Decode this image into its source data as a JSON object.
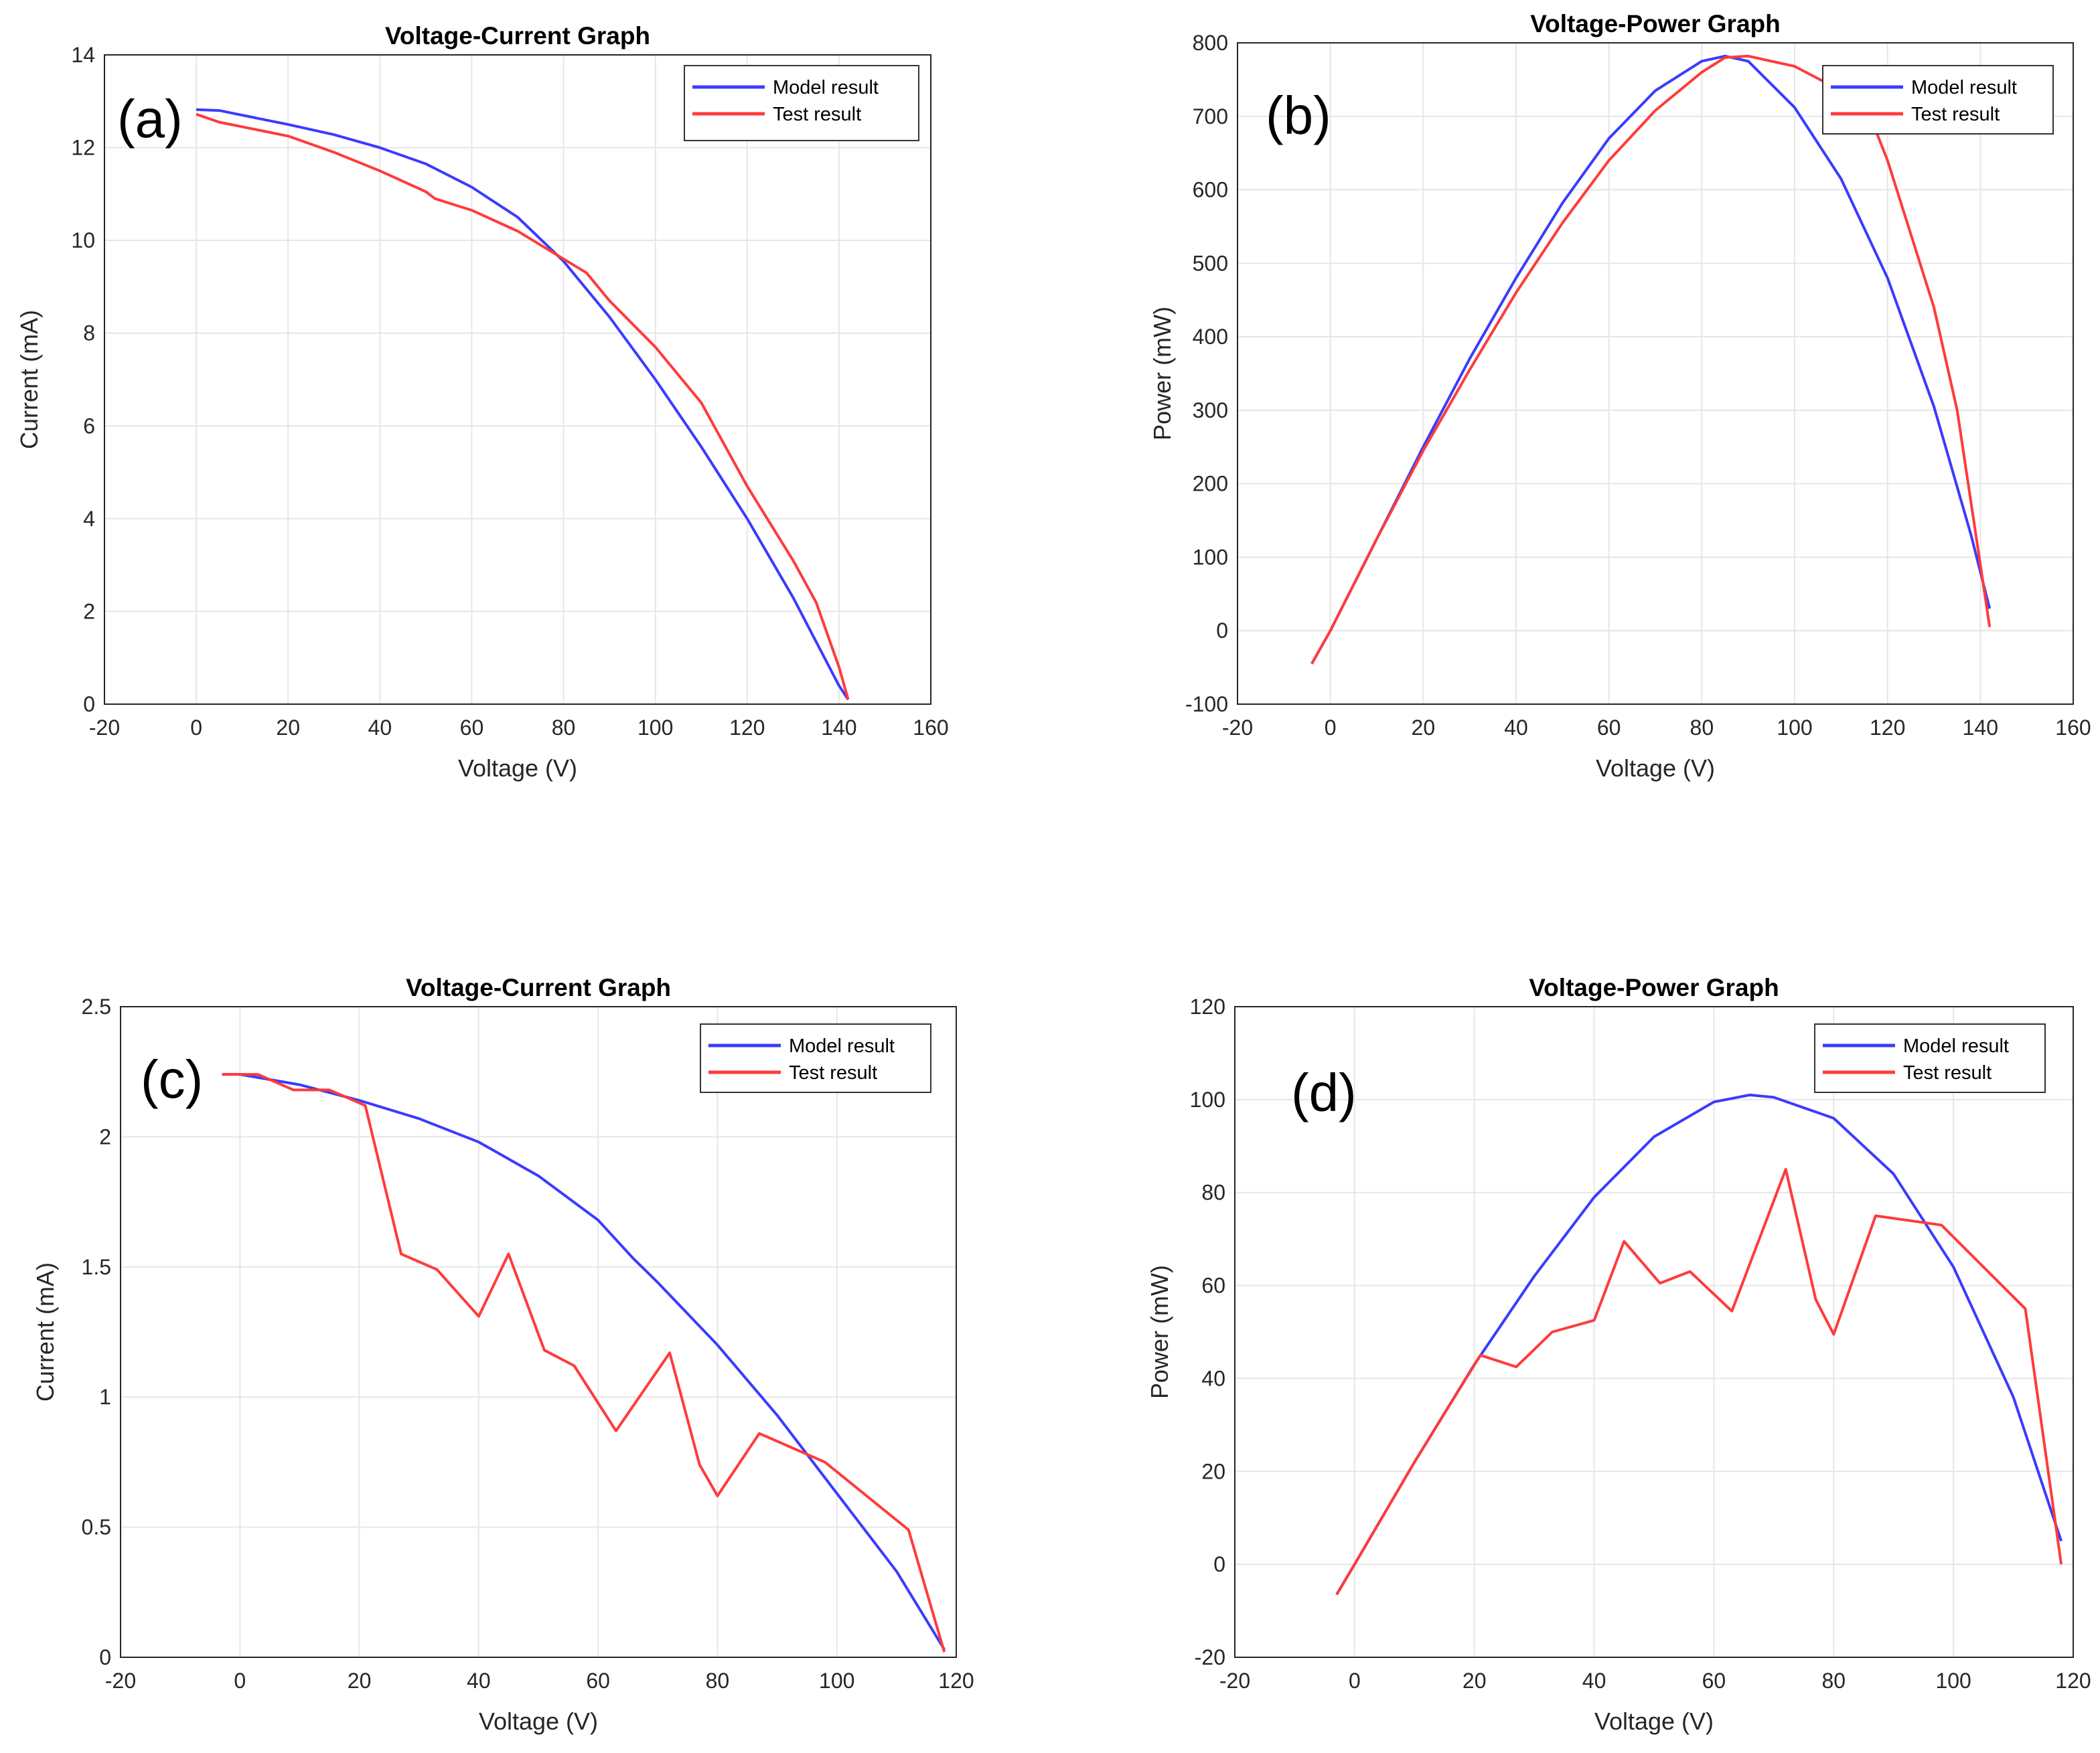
{
  "colors": {
    "model": "#3b3bff",
    "test": "#ff3b3b",
    "grid": "#e6e6e6",
    "axis": "#262626"
  },
  "chart_data": [
    {
      "type": "line",
      "panel_label": "(a)",
      "title": "Voltage-Current Graph",
      "xlabel": "Voltage (V)",
      "ylabel": "Current (mA)",
      "xlim": [
        -20,
        160
      ],
      "ylim": [
        0,
        14
      ],
      "xticks": [
        "-20",
        "0",
        "20",
        "40",
        "60",
        "80",
        "100",
        "120",
        "140",
        "160"
      ],
      "yticks": [
        "0",
        "2",
        "4",
        "6",
        "8",
        "10",
        "12",
        "14"
      ],
      "grid": true,
      "legend": {
        "position": "top-right",
        "entries": [
          "Model result",
          "Test result"
        ]
      },
      "series": [
        {
          "name": "Model result",
          "color": "#3b3bff",
          "points": [
            [
              0,
              12.82
            ],
            [
              5,
              12.8
            ],
            [
              10,
              12.7
            ],
            [
              20,
              12.5
            ],
            [
              30,
              12.28
            ],
            [
              40,
              12.0
            ],
            [
              50,
              11.65
            ],
            [
              60,
              11.15
            ],
            [
              70,
              10.5
            ],
            [
              80,
              9.55
            ],
            [
              90,
              8.35
            ],
            [
              100,
              7.0
            ],
            [
              110,
              5.55
            ],
            [
              120,
              4.0
            ],
            [
              130,
              2.3
            ],
            [
              140,
              0.4
            ],
            [
              142,
              0.1
            ]
          ]
        },
        {
          "name": "Test result",
          "color": "#ff3b3b",
          "points": [
            [
              0,
              12.72
            ],
            [
              5,
              12.55
            ],
            [
              10,
              12.45
            ],
            [
              20,
              12.25
            ],
            [
              30,
              11.9
            ],
            [
              40,
              11.5
            ],
            [
              50,
              11.05
            ],
            [
              52,
              10.9
            ],
            [
              60,
              10.65
            ],
            [
              70,
              10.2
            ],
            [
              80,
              9.6
            ],
            [
              85,
              9.3
            ],
            [
              90,
              8.7
            ],
            [
              100,
              7.7
            ],
            [
              110,
              6.5
            ],
            [
              120,
              4.7
            ],
            [
              130,
              3.1
            ],
            [
              135,
              2.2
            ],
            [
              140,
              0.8
            ],
            [
              142,
              0.1
            ]
          ]
        }
      ]
    },
    {
      "type": "line",
      "panel_label": "(b)",
      "title": "Voltage-Power Graph",
      "xlabel": "Voltage (V)",
      "ylabel": "Power (mW)",
      "xlim": [
        -20,
        160
      ],
      "ylim": [
        -100,
        800
      ],
      "xticks": [
        "-20",
        "0",
        "20",
        "40",
        "60",
        "80",
        "100",
        "120",
        "140",
        "160"
      ],
      "yticks": [
        "-100",
        "0",
        "100",
        "200",
        "300",
        "400",
        "500",
        "600",
        "700",
        "800"
      ],
      "grid": true,
      "legend": {
        "position": "top-right",
        "entries": [
          "Model result",
          "Test result"
        ]
      },
      "series": [
        {
          "name": "Model result",
          "color": "#3b3bff",
          "points": [
            [
              -4,
              -45
            ],
            [
              0,
              0
            ],
            [
              10,
              125
            ],
            [
              20,
              250
            ],
            [
              30,
              370
            ],
            [
              40,
              480
            ],
            [
              50,
              582
            ],
            [
              60,
              670
            ],
            [
              70,
              735
            ],
            [
              80,
              775
            ],
            [
              85,
              782
            ],
            [
              90,
              775
            ],
            [
              100,
              712
            ],
            [
              110,
              615
            ],
            [
              120,
              480
            ],
            [
              130,
              305
            ],
            [
              138,
              130
            ],
            [
              142,
              30
            ]
          ]
        },
        {
          "name": "Test result",
          "color": "#ff3b3b",
          "points": [
            [
              -4,
              -45
            ],
            [
              0,
              0
            ],
            [
              10,
              125
            ],
            [
              20,
              245
            ],
            [
              30,
              355
            ],
            [
              40,
              460
            ],
            [
              50,
              555
            ],
            [
              60,
              640
            ],
            [
              70,
              708
            ],
            [
              80,
              760
            ],
            [
              85,
              780
            ],
            [
              90,
              782
            ],
            [
              100,
              768
            ],
            [
              110,
              735
            ],
            [
              115,
              720
            ],
            [
              120,
              640
            ],
            [
              130,
              440
            ],
            [
              135,
              300
            ],
            [
              140,
              90
            ],
            [
              142,
              5
            ]
          ]
        }
      ]
    },
    {
      "type": "line",
      "panel_label": "(c)",
      "title": "Voltage-Current Graph",
      "xlabel": "Voltage (V)",
      "ylabel": "Current (mA)",
      "xlim": [
        -20,
        120
      ],
      "ylim": [
        0,
        2.5
      ],
      "xticks": [
        "-20",
        "0",
        "20",
        "40",
        "60",
        "80",
        "100",
        "120"
      ],
      "yticks": [
        "0",
        "0.5",
        "1",
        "1.5",
        "2",
        "2.5"
      ],
      "grid": true,
      "legend": {
        "position": "top-right",
        "entries": [
          "Model result",
          "Test result"
        ]
      },
      "series": [
        {
          "name": "Model result",
          "color": "#3b3bff",
          "points": [
            [
              -3,
              2.24
            ],
            [
              0,
              2.24
            ],
            [
              10,
              2.2
            ],
            [
              20,
              2.14
            ],
            [
              30,
              2.07
            ],
            [
              40,
              1.98
            ],
            [
              50,
              1.85
            ],
            [
              60,
              1.68
            ],
            [
              66,
              1.53
            ],
            [
              70,
              1.44
            ],
            [
              80,
              1.2
            ],
            [
              90,
              0.93
            ],
            [
              100,
              0.63
            ],
            [
              110,
              0.33
            ],
            [
              118,
              0.03
            ]
          ]
        },
        {
          "name": "Test result",
          "color": "#ff3b3b",
          "points": [
            [
              -3,
              2.24
            ],
            [
              3,
              2.24
            ],
            [
              9,
              2.18
            ],
            [
              15,
              2.18
            ],
            [
              21,
              2.12
            ],
            [
              27,
              1.55
            ],
            [
              33,
              1.49
            ],
            [
              40,
              1.31
            ],
            [
              45,
              1.55
            ],
            [
              51,
              1.18
            ],
            [
              56,
              1.12
            ],
            [
              63,
              0.87
            ],
            [
              72,
              1.17
            ],
            [
              77,
              0.74
            ],
            [
              80,
              0.62
            ],
            [
              87,
              0.86
            ],
            [
              98,
              0.75
            ],
            [
              112,
              0.49
            ],
            [
              118,
              0.02
            ]
          ]
        }
      ]
    },
    {
      "type": "line",
      "panel_label": "(d)",
      "title": "Voltage-Power Graph",
      "xlabel": "Voltage (V)",
      "ylabel": "Power (mW)",
      "xlim": [
        -20,
        120
      ],
      "ylim": [
        -20,
        120
      ],
      "xticks": [
        "-20",
        "0",
        "20",
        "40",
        "60",
        "80",
        "100",
        "120"
      ],
      "yticks": [
        "-20",
        "0",
        "20",
        "40",
        "60",
        "80",
        "100",
        "120"
      ],
      "grid": true,
      "legend": {
        "position": "top-right",
        "entries": [
          "Model result",
          "Test result"
        ]
      },
      "series": [
        {
          "name": "Model result",
          "color": "#3b3bff",
          "points": [
            [
              -3,
              -6.5
            ],
            [
              0,
              0
            ],
            [
              10,
              22
            ],
            [
              20,
              43
            ],
            [
              30,
              62
            ],
            [
              40,
              79
            ],
            [
              50,
              92
            ],
            [
              60,
              99.5
            ],
            [
              66,
              101
            ],
            [
              70,
              100.5
            ],
            [
              80,
              96
            ],
            [
              90,
              84
            ],
            [
              100,
              64
            ],
            [
              110,
              36
            ],
            [
              118,
              5
            ]
          ]
        },
        {
          "name": "Test result",
          "color": "#ff3b3b",
          "points": [
            [
              -3,
              -6.5
            ],
            [
              0,
              0
            ],
            [
              10,
              22
            ],
            [
              21,
              45
            ],
            [
              27,
              42.5
            ],
            [
              33,
              50
            ],
            [
              40,
              52.5
            ],
            [
              45,
              69.5
            ],
            [
              51,
              60.5
            ],
            [
              56,
              63
            ],
            [
              63,
              54.5
            ],
            [
              72,
              85
            ],
            [
              77,
              57
            ],
            [
              80,
              49.5
            ],
            [
              87,
              75
            ],
            [
              98,
              73
            ],
            [
              112,
              55
            ],
            [
              118,
              0
            ]
          ]
        }
      ]
    }
  ]
}
